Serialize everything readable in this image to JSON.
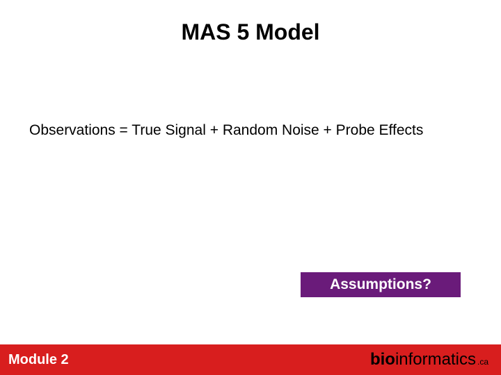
{
  "slide": {
    "title": "MAS 5 Model",
    "title_fontsize": 32,
    "title_color": "#000000",
    "body_text": "Observations = True Signal + Random Noise + Probe Effects",
    "body_fontsize": 21,
    "body_color": "#000000",
    "callout": {
      "text": "Assumptions?",
      "fontsize": 21,
      "bg_color": "#6a1b7a",
      "text_color": "#ffffff"
    },
    "footer": {
      "bg_color": "#d81e1e",
      "left_text": "Module 2",
      "left_fontsize": 20,
      "logo_bold": "bio",
      "logo_light": "informatics",
      "logo_tld": ".ca",
      "logo_bold_fontsize": 24,
      "logo_light_fontsize": 24,
      "logo_tld_fontsize": 12
    },
    "background_color": "#ffffff"
  }
}
